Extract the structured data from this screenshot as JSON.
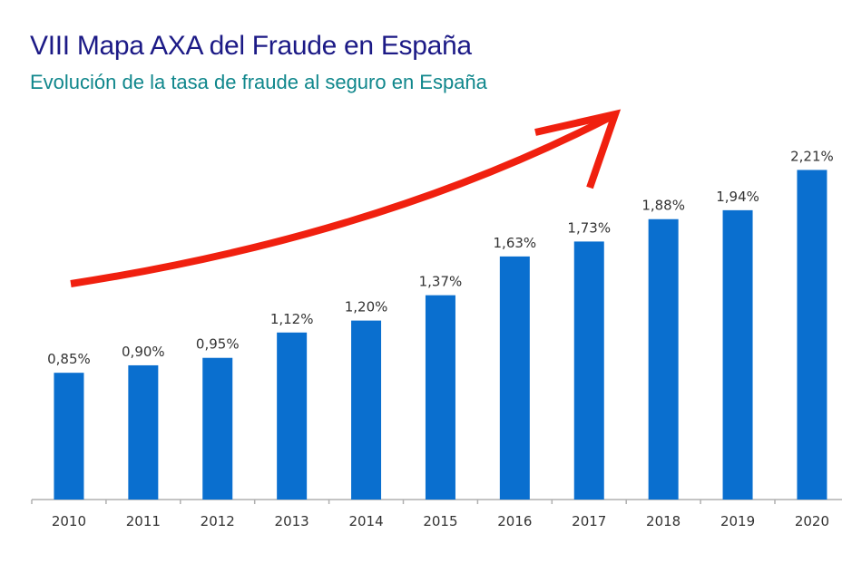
{
  "chart_data": {
    "type": "bar",
    "title": "VIII Mapa AXA del Fraude en España",
    "subtitle": "Evolución de la tasa de fraude al seguro en España",
    "categories": [
      "2010",
      "2011",
      "2012",
      "2013",
      "2014",
      "2015",
      "2016",
      "2017",
      "2018",
      "2019",
      "2020"
    ],
    "values": [
      0.85,
      0.9,
      0.95,
      1.12,
      1.2,
      1.37,
      1.63,
      1.73,
      1.88,
      1.94,
      2.21
    ],
    "data_labels": [
      "0,85%",
      "0,90%",
      "0,95%",
      "1,12%",
      "1,20%",
      "1,37%",
      "1,63%",
      "1,73%",
      "1,88%",
      "1,94%",
      "2,21%"
    ],
    "xlabel": "",
    "ylabel": "",
    "ylim": [
      0,
      2.4
    ],
    "grid": false,
    "annotation": "red upward-trend arrow",
    "colors": {
      "bar": "#0a6fcf",
      "title": "#1c1a86",
      "subtitle": "#10878c",
      "arrow": "#f0200f",
      "label": "#333333"
    }
  }
}
